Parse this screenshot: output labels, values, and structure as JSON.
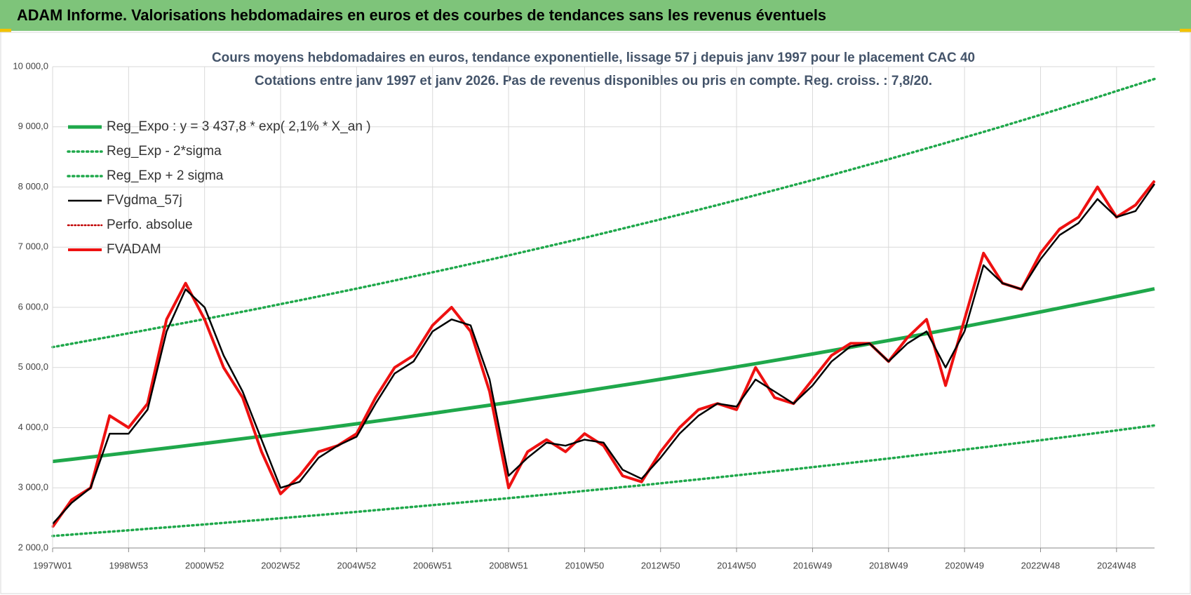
{
  "chart_data": {
    "type": "line",
    "header": "ADAM Informe. Valorisations hebdomadaires en euros et des courbes de tendances sans les revenus éventuels",
    "title": "Cours moyens hebdomadaires en euros, tendance exponentielle, lissage 57 j depuis janv 1997  pour le placement CAC 40",
    "subtitle": "Cotations entre janv 1997 et janv 2026. Pas de revenus disponibles ou pris  en compte. Reg. croiss. : 7,8/20.",
    "categories": [
      "1997W01",
      null,
      null,
      null,
      "1998W53",
      null,
      null,
      null,
      "2000W52",
      null,
      null,
      null,
      "2002W52",
      null,
      null,
      null,
      "2004W52",
      null,
      null,
      null,
      "2006W51",
      null,
      null,
      null,
      "2008W51",
      null,
      null,
      null,
      "2010W50",
      null,
      null,
      null,
      "2012W50",
      null,
      null,
      null,
      "2014W50",
      null,
      null,
      null,
      "2016W49",
      null,
      null,
      null,
      "2018W49",
      null,
      null,
      null,
      "2020W49",
      null,
      null,
      null,
      "2022W48",
      null,
      null,
      null,
      "2024W48",
      null,
      null
    ],
    "ylim": [
      2000,
      10000
    ],
    "yticks": [
      {
        "value": 2000,
        "label": "2 000,0"
      },
      {
        "value": 3000,
        "label": "3 000,0"
      },
      {
        "value": 4000,
        "label": "4 000,0"
      },
      {
        "value": 5000,
        "label": "5 000,0"
      },
      {
        "value": 6000,
        "label": "6 000,0"
      },
      {
        "value": 7000,
        "label": "7 000,0"
      },
      {
        "value": 8000,
        "label": "8 000,0"
      },
      {
        "value": 9000,
        "label": "9 000,0"
      },
      {
        "value": 10000,
        "label": "10 000,0"
      }
    ],
    "grid": true,
    "legend": "upper left",
    "series": [
      {
        "name": "Reg_Expo : y = 3 437,8 * exp( 2,1% *  X_an )",
        "color": "#1fa84b",
        "line_style": "solid",
        "line_width": 5,
        "values": [
          3438,
          3474,
          3511,
          3548,
          3585,
          3623,
          3661,
          3699,
          3738,
          3777,
          3817,
          3857,
          3898,
          3939,
          3980,
          4022,
          4064,
          4107,
          4150,
          4194,
          4238,
          4283,
          4328,
          4373,
          4419,
          4466,
          4513,
          4560,
          4608,
          4657,
          4706,
          4755,
          4805,
          4856,
          4907,
          4958,
          5011,
          5064,
          5117,
          5171,
          5225,
          5280,
          5336,
          5392,
          5448,
          5506,
          5564,
          5622,
          5681,
          5741,
          5801,
          5862,
          5924,
          5987,
          6050,
          6113,
          6178,
          6243,
          6308
        ]
      },
      {
        "name": "Reg_Exp - 2*sigma",
        "color": "#1fa84b",
        "line_style": "dotted",
        "line_width": 3.5,
        "values": [
          2200,
          2223,
          2247,
          2271,
          2294,
          2319,
          2343,
          2367,
          2392,
          2417,
          2443,
          2468,
          2495,
          2521,
          2547,
          2574,
          2601,
          2628,
          2656,
          2684,
          2712,
          2741,
          2770,
          2799,
          2828,
          2858,
          2888,
          2918,
          2949,
          2980,
          3012,
          3043,
          3075,
          3108,
          3140,
          3173,
          3207,
          3241,
          3275,
          3309,
          3344,
          3379,
          3415,
          3451,
          3487,
          3524,
          3561,
          3598,
          3636,
          3674,
          3713,
          3752,
          3791,
          3832,
          3872,
          3912,
          3954,
          3996,
          4037
        ]
      },
      {
        "name": "Reg_Exp + 2 sigma",
        "color": "#1fa84b",
        "line_style": "dotted",
        "line_width": 3.5,
        "values": [
          5339,
          5395,
          5453,
          5510,
          5568,
          5627,
          5686,
          5745,
          5805,
          5866,
          5928,
          5990,
          6054,
          6117,
          6181,
          6246,
          6311,
          6378,
          6445,
          6513,
          6582,
          6651,
          6721,
          6791,
          6863,
          6936,
          7009,
          7082,
          7156,
          7232,
          7308,
          7385,
          7462,
          7541,
          7621,
          7700,
          7782,
          7864,
          7947,
          8031,
          8114,
          8200,
          8287,
          8374,
          8461,
          8551,
          8641,
          8731,
          8823,
          8916,
          9009,
          9104,
          9200,
          9298,
          9396,
          9493,
          9594,
          9695,
          9796
        ]
      },
      {
        "name": "FVgdma_57j",
        "color": "#000000",
        "line_style": "solid",
        "line_width": 2.5,
        "values": [
          2400,
          2750,
          3000,
          3900,
          3900,
          4300,
          5600,
          6300,
          6000,
          5200,
          4600,
          3800,
          3000,
          3100,
          3500,
          3700,
          3850,
          4400,
          4900,
          5100,
          5600,
          5800,
          5700,
          4800,
          3200,
          3500,
          3750,
          3700,
          3800,
          3750,
          3300,
          3150,
          3500,
          3900,
          4200,
          4400,
          4350,
          4800,
          4600,
          4400,
          4700,
          5100,
          5350,
          5400,
          5100,
          5400,
          5600,
          5000,
          5600,
          6700,
          6400,
          6300,
          6800,
          7200,
          7400,
          7800,
          7500,
          7600,
          8050
        ]
      },
      {
        "name": "Perfo. absolue",
        "color": "#c00000",
        "line_style": "dotted",
        "line_width": 2.5,
        "values": [
          2350,
          2800,
          3000,
          4200,
          4000,
          4400,
          5800,
          6400,
          5800,
          5000,
          4500,
          3600,
          2900,
          3200,
          3600,
          3700,
          3900,
          4500,
          5000,
          5200,
          5700,
          6000,
          5600,
          4600,
          3000,
          3600,
          3800,
          3600,
          3900,
          3700,
          3200,
          3100,
          3600,
          4000,
          4300,
          4400,
          4300,
          5000,
          4500,
          4400,
          4800,
          5200,
          5400,
          5400,
          5100,
          5500,
          5800,
          4700,
          5800,
          6900,
          6400,
          6300,
          6900,
          7300,
          7500,
          8000,
          7500,
          7700,
          8100
        ]
      },
      {
        "name": "FVADAM",
        "color": "#ee1111",
        "line_style": "solid",
        "line_width": 4,
        "values": [
          2350,
          2800,
          3000,
          4200,
          4000,
          4400,
          5800,
          6400,
          5800,
          5000,
          4500,
          3600,
          2900,
          3200,
          3600,
          3700,
          3900,
          4500,
          5000,
          5200,
          5700,
          6000,
          5600,
          4600,
          3000,
          3600,
          3800,
          3600,
          3900,
          3700,
          3200,
          3100,
          3600,
          4000,
          4300,
          4400,
          4300,
          5000,
          4500,
          4400,
          4800,
          5200,
          5400,
          5400,
          5100,
          5500,
          5800,
          4700,
          5800,
          6900,
          6400,
          6300,
          6900,
          7300,
          7500,
          8000,
          7500,
          7700,
          8100
        ]
      }
    ]
  }
}
